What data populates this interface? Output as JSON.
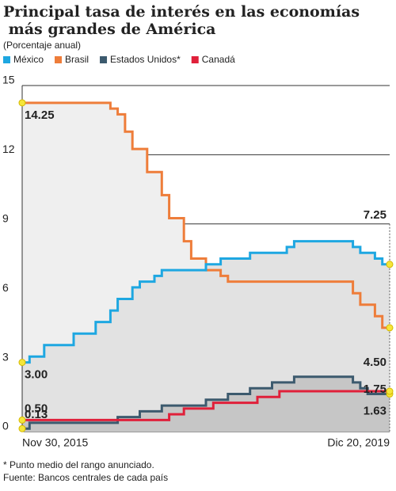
{
  "chart_data": {
    "type": "step",
    "title": [
      "Principal tasa de interés en las economías",
      " más grandes de América"
    ],
    "subtitle": "(Porcentaje anual)",
    "footnotes": [
      "* Punto medio del rango anunciado.",
      "Fuente: Bancos centrales de cada país"
    ],
    "categories": [
      "Nov 30, 2015",
      null,
      null,
      null,
      null,
      null,
      null,
      null,
      null,
      null,
      null,
      null,
      null,
      null,
      null,
      null,
      null,
      null,
      null,
      null,
      null,
      null,
      null,
      null,
      null,
      null,
      null,
      null,
      null,
      null,
      null,
      null,
      null,
      null,
      null,
      null,
      null,
      null,
      null,
      null,
      null,
      null,
      null,
      null,
      null,
      null,
      null,
      null,
      null,
      "Dic 20, 2019"
    ],
    "ylim": [
      0,
      15
    ],
    "yticks": [
      0,
      3,
      6,
      9,
      12,
      15
    ],
    "grid": true,
    "series": [
      {
        "name": "México",
        "color": "#1ea7e1",
        "fill": "#e2e2e2",
        "values": [
          3.0,
          3.25,
          3.25,
          3.75,
          3.75,
          3.75,
          3.75,
          4.25,
          4.25,
          4.25,
          4.75,
          4.75,
          5.25,
          5.75,
          5.75,
          6.25,
          6.5,
          6.5,
          6.75,
          7.0,
          7.0,
          7.0,
          7.0,
          7.0,
          7.0,
          7.25,
          7.25,
          7.5,
          7.5,
          7.5,
          7.5,
          7.75,
          7.75,
          7.75,
          7.75,
          7.75,
          8.0,
          8.25,
          8.25,
          8.25,
          8.25,
          8.25,
          8.25,
          8.25,
          8.25,
          8.0,
          7.75,
          7.75,
          7.5,
          7.25
        ],
        "value_labels": [
          "3.00",
          null,
          null,
          null,
          null,
          null,
          null,
          null,
          null,
          null,
          null,
          null,
          null,
          null,
          null,
          null,
          null,
          null,
          null,
          null,
          null,
          null,
          null,
          null,
          null,
          null,
          null,
          null,
          null,
          null,
          null,
          null,
          null,
          null,
          null,
          null,
          null,
          null,
          null,
          null,
          null,
          null,
          null,
          null,
          null,
          null,
          null,
          null,
          null,
          "7.25"
        ]
      },
      {
        "name": "Brasil",
        "color": "#ee7d3a",
        "fill": "#efefef",
        "values": [
          14.25,
          14.25,
          14.25,
          14.25,
          14.25,
          14.25,
          14.25,
          14.25,
          14.25,
          14.25,
          14.25,
          14.25,
          14.0,
          13.75,
          13.0,
          12.25,
          12.25,
          11.25,
          11.25,
          10.25,
          9.25,
          9.25,
          8.25,
          7.5,
          7.5,
          7.0,
          7.0,
          6.75,
          6.5,
          6.5,
          6.5,
          6.5,
          6.5,
          6.5,
          6.5,
          6.5,
          6.5,
          6.5,
          6.5,
          6.5,
          6.5,
          6.5,
          6.5,
          6.5,
          6.5,
          6.0,
          5.5,
          5.5,
          5.0,
          4.5
        ],
        "value_labels": [
          "14.25",
          null,
          null,
          null,
          null,
          null,
          null,
          null,
          null,
          null,
          null,
          null,
          null,
          null,
          null,
          null,
          null,
          null,
          null,
          null,
          null,
          null,
          null,
          null,
          null,
          null,
          null,
          null,
          null,
          null,
          null,
          null,
          null,
          null,
          null,
          null,
          null,
          null,
          null,
          null,
          null,
          null,
          null,
          null,
          null,
          null,
          null,
          null,
          null,
          "4.50"
        ]
      },
      {
        "name": "Estados Unidos*",
        "color": "#3c5a6e",
        "fill": "#c6c6c6",
        "values": [
          0.13,
          0.38,
          0.38,
          0.38,
          0.38,
          0.38,
          0.38,
          0.38,
          0.38,
          0.38,
          0.38,
          0.38,
          0.38,
          0.63,
          0.63,
          0.63,
          0.88,
          0.88,
          0.88,
          1.13,
          1.13,
          1.13,
          1.13,
          1.13,
          1.13,
          1.38,
          1.38,
          1.38,
          1.63,
          1.63,
          1.63,
          1.88,
          1.88,
          1.88,
          2.13,
          2.13,
          2.13,
          2.38,
          2.38,
          2.38,
          2.38,
          2.38,
          2.38,
          2.38,
          2.38,
          2.13,
          1.88,
          1.63,
          1.63,
          1.63
        ],
        "value_labels": [
          "0.13",
          null,
          null,
          null,
          null,
          null,
          null,
          null,
          null,
          null,
          null,
          null,
          null,
          null,
          null,
          null,
          null,
          null,
          null,
          null,
          null,
          null,
          null,
          null,
          null,
          null,
          null,
          null,
          null,
          null,
          null,
          null,
          null,
          null,
          null,
          null,
          null,
          null,
          null,
          null,
          null,
          null,
          null,
          null,
          null,
          null,
          null,
          null,
          null,
          "1.63"
        ]
      },
      {
        "name": "Canadá",
        "color": "#e0203a",
        "fill": "#c6c6c6",
        "values": [
          0.5,
          0.5,
          0.5,
          0.5,
          0.5,
          0.5,
          0.5,
          0.5,
          0.5,
          0.5,
          0.5,
          0.5,
          0.5,
          0.5,
          0.5,
          0.5,
          0.5,
          0.5,
          0.5,
          0.5,
          0.75,
          0.75,
          1.0,
          1.0,
          1.0,
          1.0,
          1.25,
          1.25,
          1.25,
          1.25,
          1.25,
          1.25,
          1.5,
          1.5,
          1.5,
          1.75,
          1.75,
          1.75,
          1.75,
          1.75,
          1.75,
          1.75,
          1.75,
          1.75,
          1.75,
          1.75,
          1.75,
          1.75,
          1.75,
          1.75
        ],
        "value_labels": [
          "0.50",
          null,
          null,
          null,
          null,
          null,
          null,
          null,
          null,
          null,
          null,
          null,
          null,
          null,
          null,
          null,
          null,
          null,
          null,
          null,
          null,
          null,
          null,
          null,
          null,
          null,
          null,
          null,
          null,
          null,
          null,
          null,
          null,
          null,
          null,
          null,
          null,
          null,
          null,
          null,
          null,
          null,
          null,
          null,
          null,
          null,
          null,
          null,
          null,
          "1.75"
        ]
      }
    ]
  }
}
